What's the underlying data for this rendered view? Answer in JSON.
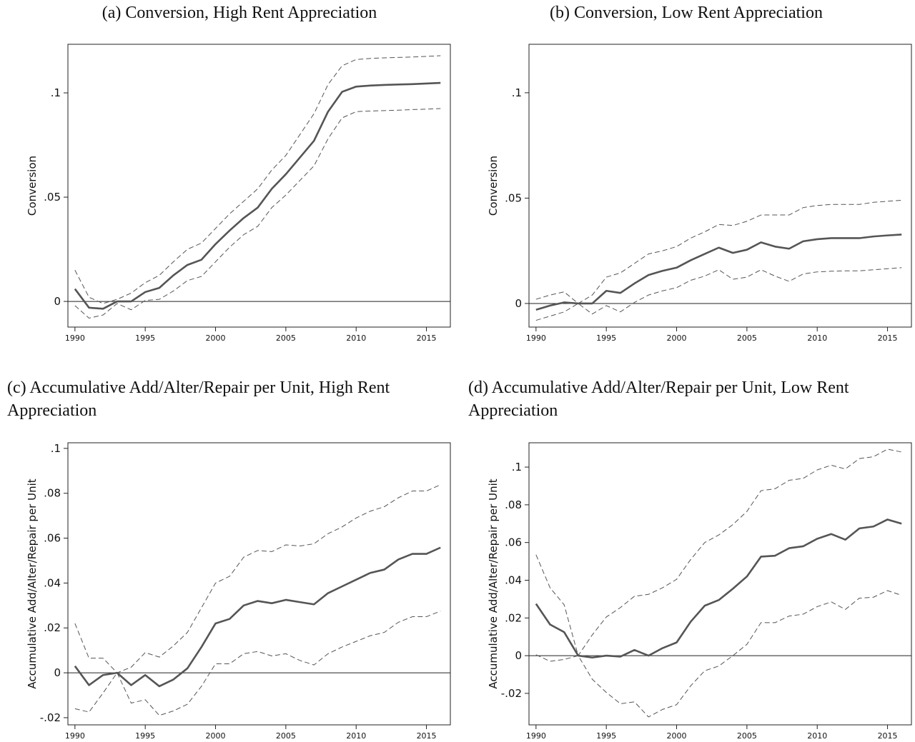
{
  "chart_data": [
    {
      "type": "line",
      "title": "(a) Conversion, High Rent Appreciation",
      "ylabel": "Conversion",
      "x": [
        1990,
        1991,
        1992,
        1993,
        1994,
        1995,
        1996,
        1997,
        1998,
        1999,
        2000,
        2001,
        2002,
        2003,
        2004,
        2005,
        2006,
        2007,
        2008,
        2009,
        2010,
        2011,
        2012,
        2013,
        2014,
        2015,
        2016
      ],
      "series": [
        {
          "color": "#555555",
          "style": "solid",
          "values": [
            0.006,
            -0.003,
            -0.0035,
            0.0,
            0.0,
            0.0045,
            0.0065,
            0.0125,
            0.0175,
            0.02,
            0.0275,
            0.034,
            0.04,
            0.045,
            0.054,
            0.061,
            0.069,
            0.077,
            0.091,
            0.1005,
            0.103,
            0.1035,
            0.1038,
            0.104,
            0.1042,
            0.1045,
            0.1048
          ]
        },
        {
          "color": "#555555",
          "style": "dashed",
          "values": [
            0.015,
            0.002,
            -0.001,
            0.001,
            0.004,
            0.009,
            0.0125,
            0.019,
            0.025,
            0.028,
            0.035,
            0.042,
            0.048,
            0.054,
            0.063,
            0.07,
            0.08,
            0.09,
            0.104,
            0.113,
            0.116,
            0.1165,
            0.1168,
            0.117,
            0.1172,
            0.1175,
            0.1178
          ]
        },
        {
          "color": "#555555",
          "style": "dashed",
          "values": [
            -0.002,
            -0.008,
            -0.0065,
            -0.001,
            -0.004,
            0.0005,
            0.001,
            0.005,
            0.01,
            0.012,
            0.019,
            0.026,
            0.032,
            0.036,
            0.045,
            0.051,
            0.058,
            0.065,
            0.078,
            0.088,
            0.091,
            0.0913,
            0.0915,
            0.0917,
            0.092,
            0.0922,
            0.0925
          ]
        }
      ],
      "xlim": [
        1989.5,
        2016.7
      ],
      "xticks": [
        1990,
        1995,
        2000,
        2005,
        2010,
        2015
      ],
      "ylim": [
        -0.0123,
        0.1233
      ],
      "yticks": [
        0,
        {
          "value": 0.05,
          "label": ".05"
        },
        {
          "value": 0.1,
          "label": ".1"
        }
      ],
      "hline": 0,
      "grid": false
    },
    {
      "type": "line",
      "title": "(b) Conversion, Low Rent Appreciation",
      "ylabel": "Conversion",
      "x": [
        1990,
        1991,
        1992,
        1993,
        1994,
        1995,
        1996,
        1997,
        1998,
        1999,
        2000,
        2001,
        2002,
        2003,
        2004,
        2005,
        2006,
        2007,
        2008,
        2009,
        2010,
        2011,
        2012,
        2013,
        2014,
        2015,
        2016
      ],
      "series": [
        {
          "color": "#555555",
          "style": "solid",
          "values": [
            -0.003,
            -0.001,
            0.0005,
            0.0,
            0.0,
            0.006,
            0.005,
            0.0095,
            0.0135,
            0.0155,
            0.017,
            0.0205,
            0.0235,
            0.0265,
            0.024,
            0.0255,
            0.029,
            0.027,
            0.026,
            0.0295,
            0.0305,
            0.031,
            0.031,
            0.031,
            0.0318,
            0.0323,
            0.0327
          ]
        },
        {
          "color": "#555555",
          "style": "dashed",
          "values": [
            0.002,
            0.004,
            0.0055,
            0.0,
            0.004,
            0.0125,
            0.0145,
            0.019,
            0.0235,
            0.025,
            0.027,
            0.031,
            0.034,
            0.0375,
            0.037,
            0.039,
            0.042,
            0.042,
            0.042,
            0.0455,
            0.0465,
            0.047,
            0.047,
            0.047,
            0.048,
            0.0485,
            0.049
          ]
        },
        {
          "color": "#555555",
          "style": "dashed",
          "values": [
            -0.008,
            -0.006,
            -0.004,
            0.0,
            -0.005,
            -0.001,
            -0.004,
            0.0005,
            0.004,
            0.006,
            0.0075,
            0.011,
            0.013,
            0.016,
            0.0115,
            0.0125,
            0.016,
            0.013,
            0.0105,
            0.014,
            0.015,
            0.0153,
            0.0155,
            0.0155,
            0.016,
            0.0165,
            0.017
          ]
        }
      ],
      "xlim": [
        1989.5,
        2016.7
      ],
      "xticks": [
        1990,
        1995,
        2000,
        2005,
        2010,
        2015
      ],
      "ylim": [
        -0.0112,
        0.123
      ],
      "yticks": [
        0,
        {
          "value": 0.05,
          "label": ".05"
        },
        {
          "value": 0.1,
          "label": ".1"
        }
      ],
      "hline": 0,
      "grid": false
    },
    {
      "type": "line",
      "title": "(c) Accumulative Add/Alter/Repair per Unit, High Rent Appreciation",
      "ylabel": "Accumulative Add/Alter/Repair per Unit",
      "x": [
        1990,
        1991,
        1992,
        1993,
        1994,
        1995,
        1996,
        1997,
        1998,
        1999,
        2000,
        2001,
        2002,
        2003,
        2004,
        2005,
        2006,
        2007,
        2008,
        2009,
        2010,
        2011,
        2012,
        2013,
        2014,
        2015,
        2016
      ],
      "series": [
        {
          "color": "#555555",
          "style": "solid",
          "values": [
            0.003,
            -0.0055,
            -0.001,
            0.0,
            -0.0055,
            -0.001,
            -0.006,
            -0.003,
            0.002,
            0.0115,
            0.022,
            0.024,
            0.03,
            0.032,
            0.031,
            0.0325,
            0.0315,
            0.0305,
            0.0355,
            0.0385,
            0.0415,
            0.0445,
            0.046,
            0.0505,
            0.053,
            0.053,
            0.0558
          ]
        },
        {
          "color": "#555555",
          "style": "dashed",
          "values": [
            0.022,
            0.0065,
            0.0065,
            0.0,
            0.0025,
            0.009,
            0.007,
            0.012,
            0.018,
            0.029,
            0.04,
            0.043,
            0.0515,
            0.0545,
            0.054,
            0.057,
            0.0565,
            0.0575,
            0.062,
            0.065,
            0.069,
            0.072,
            0.074,
            0.078,
            0.081,
            0.081,
            0.0838
          ]
        },
        {
          "color": "#555555",
          "style": "dashed",
          "values": [
            -0.016,
            -0.0175,
            -0.009,
            0.0,
            -0.0135,
            -0.012,
            -0.019,
            -0.017,
            -0.014,
            -0.006,
            0.004,
            0.004,
            0.0085,
            0.0095,
            0.0075,
            0.0085,
            0.0055,
            0.0035,
            0.0085,
            0.0115,
            0.014,
            0.0165,
            0.018,
            0.0225,
            0.025,
            0.025,
            0.0275
          ]
        }
      ],
      "xlim": [
        1989.5,
        2016.7
      ],
      "xticks": [
        1990,
        1995,
        2000,
        2005,
        2010,
        2015
      ],
      "ylim": [
        -0.0232,
        0.1025
      ],
      "yticks": [
        {
          "value": -0.02,
          "label": "-.02"
        },
        0,
        {
          "value": 0.02,
          "label": ".02"
        },
        {
          "value": 0.04,
          "label": ".04"
        },
        {
          "value": 0.06,
          "label": ".06"
        },
        {
          "value": 0.08,
          "label": ".08"
        },
        {
          "value": 0.1,
          "label": ".1"
        }
      ],
      "hline": 0,
      "grid": false
    },
    {
      "type": "line",
      "title": "(d) Accumulative Add/Alter/Repair per Unit, Low Rent Appreciation",
      "ylabel": "Accumulative Add/Alter/Repair per Unit",
      "x": [
        1990,
        1991,
        1992,
        1993,
        1994,
        1995,
        1996,
        1997,
        1998,
        1999,
        2000,
        2001,
        2002,
        2003,
        2004,
        2005,
        2006,
        2007,
        2008,
        2009,
        2010,
        2011,
        2012,
        2013,
        2014,
        2015,
        2016
      ],
      "series": [
        {
          "color": "#555555",
          "style": "solid",
          "values": [
            0.0275,
            0.0165,
            0.0125,
            0.0,
            -0.001,
            0.0,
            -0.0005,
            0.003,
            0.0,
            0.004,
            0.007,
            0.018,
            0.0265,
            0.0295,
            0.0355,
            0.042,
            0.0525,
            0.053,
            0.057,
            0.058,
            0.062,
            0.0645,
            0.0615,
            0.0675,
            0.0685,
            0.0722,
            0.07
          ]
        },
        {
          "color": "#555555",
          "style": "dashed",
          "values": [
            0.0535,
            0.036,
            0.027,
            0.0,
            0.011,
            0.0205,
            0.0255,
            0.0315,
            0.0325,
            0.036,
            0.0405,
            0.051,
            0.06,
            0.064,
            0.0695,
            0.0765,
            0.0875,
            0.0885,
            0.093,
            0.094,
            0.0985,
            0.101,
            0.099,
            0.1045,
            0.1055,
            0.1095,
            0.108
          ]
        },
        {
          "color": "#555555",
          "style": "dashed",
          "values": [
            0.0005,
            -0.003,
            -0.002,
            0.0,
            -0.0125,
            -0.0195,
            -0.0255,
            -0.0245,
            -0.0325,
            -0.0285,
            -0.026,
            -0.016,
            -0.008,
            -0.0055,
            0.0,
            0.006,
            0.0175,
            0.0175,
            0.021,
            0.022,
            0.026,
            0.0285,
            0.0245,
            0.0305,
            0.031,
            0.0345,
            0.032
          ]
        }
      ],
      "xlim": [
        1989.5,
        2016.7
      ],
      "xticks": [
        1990,
        1995,
        2000,
        2005,
        2010,
        2015
      ],
      "ylim": [
        -0.0367,
        0.1129
      ],
      "yticks": [
        {
          "value": -0.02,
          "label": "-.02"
        },
        0,
        {
          "value": 0.02,
          "label": ".02"
        },
        {
          "value": 0.04,
          "label": ".04"
        },
        {
          "value": 0.06,
          "label": ".06"
        },
        {
          "value": 0.08,
          "label": ".08"
        },
        {
          "value": 0.1,
          "label": ".1"
        }
      ],
      "hline": 0,
      "grid": false
    }
  ]
}
